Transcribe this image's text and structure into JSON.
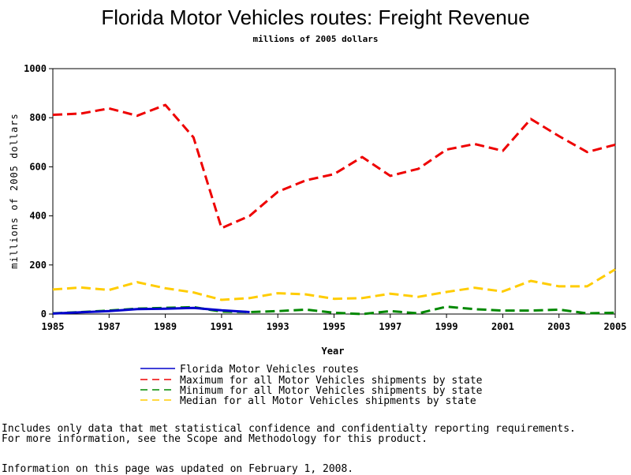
{
  "chart_data": {
    "type": "line",
    "title": "Florida Motor Vehicles routes: Freight Revenue",
    "subtitle": "millions of 2005 dollars",
    "xlabel": "Year",
    "ylabel": "millions of 2005 dollars",
    "xlim": [
      1985,
      2005
    ],
    "ylim": [
      0,
      1000
    ],
    "x_ticks": [
      1985,
      1987,
      1989,
      1991,
      1993,
      1995,
      1997,
      1999,
      2001,
      2003,
      2005
    ],
    "y_ticks": [
      0,
      200,
      400,
      600,
      800,
      1000
    ],
    "grid": false,
    "legend_position": "bottom",
    "series": [
      {
        "name": "Florida Motor Vehicles routes",
        "color": "#0000cc",
        "style": "solid",
        "x": [
          1985,
          1986,
          1987,
          1988,
          1989,
          1990,
          1991,
          1992
        ],
        "y": [
          2,
          7,
          12,
          20,
          22,
          25,
          15,
          8
        ]
      },
      {
        "name": "Maximum for all Motor Vehicles shipments by state",
        "color": "#ee0000",
        "style": "dashed",
        "x": [
          1985,
          1986,
          1987,
          1988,
          1989,
          1990,
          1991,
          1992,
          1993,
          1994,
          1995,
          1996,
          1997,
          1998,
          1999,
          2000,
          2001,
          2002,
          2003,
          2004,
          2005
        ],
        "y": [
          812,
          817,
          838,
          808,
          852,
          720,
          350,
          400,
          498,
          545,
          570,
          640,
          563,
          592,
          670,
          693,
          665,
          795,
          725,
          660,
          690
        ]
      },
      {
        "name": "Minimum for all Motor Vehicles shipments by state",
        "color": "#008800",
        "style": "dashed",
        "x": [
          1985,
          1986,
          1987,
          1988,
          1989,
          1990,
          1991,
          1992,
          1993,
          1994,
          1995,
          1996,
          1997,
          1998,
          1999,
          2000,
          2001,
          2002,
          2003,
          2004,
          2005
        ],
        "y": [
          3,
          8,
          14,
          22,
          25,
          28,
          10,
          8,
          12,
          18,
          5,
          0,
          12,
          3,
          30,
          20,
          14,
          14,
          18,
          3,
          5
        ]
      },
      {
        "name": "Median for all Motor Vehicles shipments by state",
        "color": "#ffcc00",
        "style": "dashed",
        "x": [
          1985,
          1986,
          1987,
          1988,
          1989,
          1990,
          1991,
          1992,
          1993,
          1994,
          1995,
          1996,
          1997,
          1998,
          1999,
          2000,
          2001,
          2002,
          2003,
          2004,
          2005
        ],
        "y": [
          100,
          108,
          98,
          130,
          105,
          88,
          58,
          65,
          85,
          80,
          62,
          65,
          83,
          70,
          90,
          107,
          92,
          135,
          113,
          113,
          182
        ]
      }
    ]
  },
  "notes": {
    "line1": "Includes only data that met statistical confidence and confidentialty reporting requirements.",
    "line2": "For more information, see the Scope and Methodology for this product.",
    "line3": "Information on this page was updated on February 1, 2008."
  }
}
